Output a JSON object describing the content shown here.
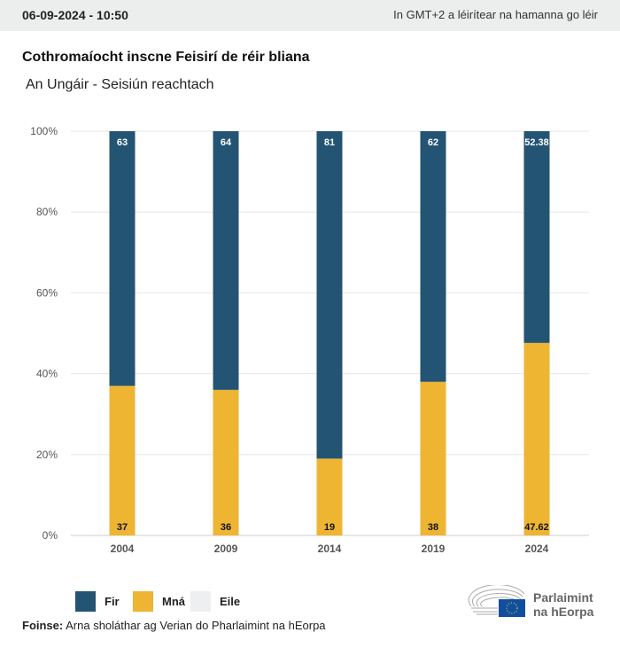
{
  "header": {
    "date": "06-09-2024 - 10:50",
    "timezone_note": "In GMT+2 a léirítear na hamanna go léir"
  },
  "title": "Cothromaíocht inscne Feisirí de réir bliana",
  "subtitle": "An Ungáir - Seisiún reachtach",
  "chart_data": {
    "type": "bar",
    "stacked": true,
    "categories": [
      "2004",
      "2009",
      "2014",
      "2019",
      "2024"
    ],
    "series": [
      {
        "name": "Mná",
        "color": "#eeb533",
        "values": [
          37,
          36,
          19,
          38,
          47.62
        ],
        "labels": [
          "37",
          "36",
          "19",
          "38",
          "47.62"
        ]
      },
      {
        "name": "Fir",
        "color": "#245473",
        "values": [
          63,
          64,
          81,
          62,
          52.38
        ],
        "labels": [
          "63",
          "64",
          "81",
          "62",
          "52.38"
        ]
      },
      {
        "name": "Eile",
        "color": "#eeeff1",
        "values": [
          0,
          0,
          0,
          0,
          0
        ]
      }
    ],
    "yticks": [
      "0%",
      "20%",
      "40%",
      "60%",
      "80%",
      "100%"
    ],
    "ylim": [
      0,
      100
    ],
    "grid": true,
    "legend": "bottom-left"
  },
  "legend": [
    {
      "label": "Fir",
      "color": "#245473"
    },
    {
      "label": "Mná",
      "color": "#eeb533"
    },
    {
      "label": "Eile",
      "color": "#eeeff1"
    }
  ],
  "source": {
    "label": "Foinse:",
    "text": " Arna sholáthar ag Verian do Pharlaimint na hEorpa"
  },
  "logo": {
    "line1": "Parlaimint",
    "line2": "na hEorpa"
  }
}
